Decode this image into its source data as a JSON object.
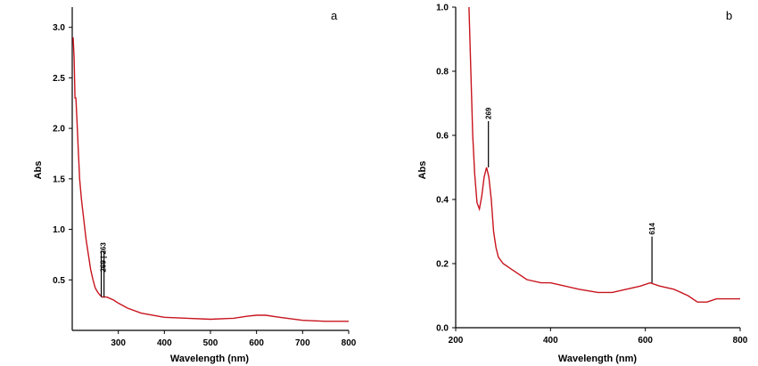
{
  "chart_data": [
    {
      "type": "line",
      "panel_label": "a",
      "xlabel": "Wavelength (nm)",
      "ylabel": "Abs",
      "xlim": [
        200,
        800
      ],
      "ylim": [
        0.0,
        3.2
      ],
      "x_tick_labels": [
        "300",
        "400",
        "500",
        "600",
        "700",
        "800"
      ],
      "x_ticks": [
        300,
        400,
        500,
        600,
        700,
        800
      ],
      "y_tick_labels": [
        "0.5",
        "1.0",
        "1.5",
        "2.0",
        "2.5",
        "3.0"
      ],
      "y_ticks": [
        0.5,
        1.0,
        1.5,
        2.0,
        2.5,
        3.0
      ],
      "grid": false,
      "series": [
        {
          "color": "#c8141e",
          "x": [
            202,
            204,
            206,
            208,
            210,
            213,
            216,
            220,
            225,
            230,
            235,
            240,
            245,
            250,
            255,
            260,
            265,
            270,
            275,
            280,
            290,
            300,
            320,
            350,
            400,
            450,
            500,
            550,
            580,
            600,
            620,
            650,
            700,
            750,
            800
          ],
          "y": [
            2.9,
            2.7,
            2.3,
            2.3,
            2.1,
            1.8,
            1.5,
            1.3,
            1.1,
            0.9,
            0.75,
            0.6,
            0.5,
            0.42,
            0.38,
            0.35,
            0.33,
            0.33,
            0.33,
            0.32,
            0.3,
            0.27,
            0.22,
            0.17,
            0.13,
            0.12,
            0.11,
            0.12,
            0.14,
            0.15,
            0.15,
            0.13,
            0.1,
            0.09,
            0.09
          ]
        }
      ],
      "peak_markers": [
        {
          "x": 263,
          "y": 0.33,
          "label": "263"
        },
        {
          "x": 269,
          "y": 0.33,
          "label": "269"
        }
      ],
      "peak_label_text": "269 | 263"
    },
    {
      "type": "line",
      "panel_label": "b",
      "xlabel": "Wavelength (nm)",
      "ylabel": "Abs",
      "xlim": [
        200,
        800
      ],
      "ylim": [
        0.0,
        1.0
      ],
      "x_tick_labels": [
        "200",
        "400",
        "600",
        "800"
      ],
      "x_ticks": [
        200,
        400,
        600,
        800
      ],
      "y_tick_labels": [
        "0.0",
        "0.2",
        "0.4",
        "0.6",
        "0.8",
        "1.0"
      ],
      "y_ticks": [
        0.0,
        0.2,
        0.4,
        0.6,
        0.8,
        1.0
      ],
      "grid": false,
      "series": [
        {
          "color": "#c8141e",
          "x": [
            228,
            232,
            236,
            240,
            245,
            250,
            255,
            260,
            265,
            270,
            275,
            280,
            285,
            290,
            300,
            320,
            350,
            380,
            400,
            430,
            460,
            500,
            530,
            560,
            590,
            610,
            630,
            660,
            690,
            710,
            730,
            750,
            780,
            800
          ],
          "y": [
            1.0,
            0.8,
            0.6,
            0.48,
            0.39,
            0.37,
            0.41,
            0.47,
            0.5,
            0.47,
            0.4,
            0.3,
            0.25,
            0.22,
            0.2,
            0.18,
            0.15,
            0.14,
            0.14,
            0.13,
            0.12,
            0.11,
            0.11,
            0.12,
            0.13,
            0.14,
            0.13,
            0.12,
            0.1,
            0.08,
            0.08,
            0.09,
            0.09,
            0.09
          ]
        }
      ],
      "peak_markers": [
        {
          "x": 269,
          "y": 0.5,
          "label": "269"
        },
        {
          "x": 614,
          "y": 0.14,
          "label": "614"
        }
      ]
    }
  ]
}
